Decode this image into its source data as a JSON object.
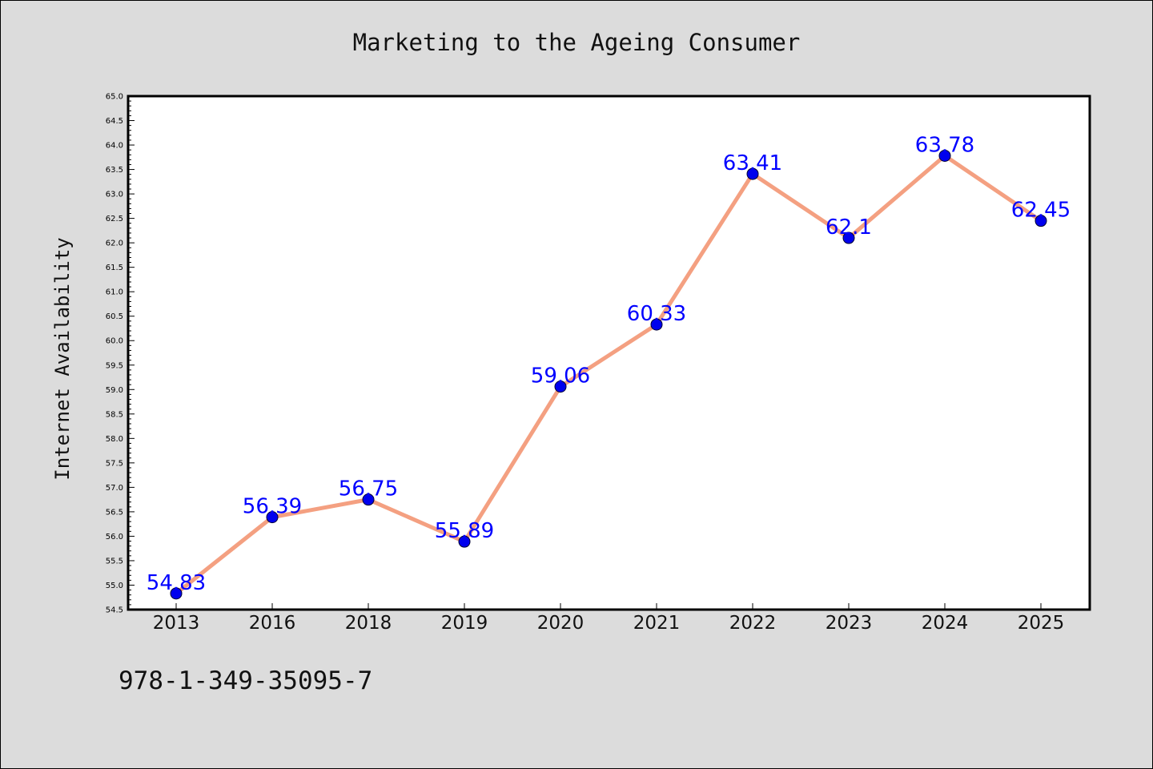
{
  "chart_data": {
    "type": "line",
    "title": "Marketing to the Ageing Consumer",
    "ylabel": "Internet Availability",
    "xlabel": "",
    "categories": [
      "2013",
      "2016",
      "2018",
      "2019",
      "2020",
      "2021",
      "2022",
      "2023",
      "2024",
      "2025"
    ],
    "series": [
      {
        "values": [
          54.83,
          56.39,
          56.75,
          55.89,
          59.06,
          60.33,
          63.41,
          62.1,
          63.78,
          62.45
        ],
        "labels": [
          "54.83",
          "56.39",
          "56.75",
          "55.89",
          "59.06",
          "60.33",
          "63.41",
          "62.1",
          "63.78",
          "62.45"
        ]
      }
    ],
    "ylim": [
      54.5,
      65.0
    ],
    "ytick_step": 0.5,
    "grid": false,
    "line_color": "#f4a081",
    "marker_color": "#0000ee",
    "label_color": "#0000ff"
  },
  "footer": {
    "isbn": "978-1-349-35095-7"
  }
}
